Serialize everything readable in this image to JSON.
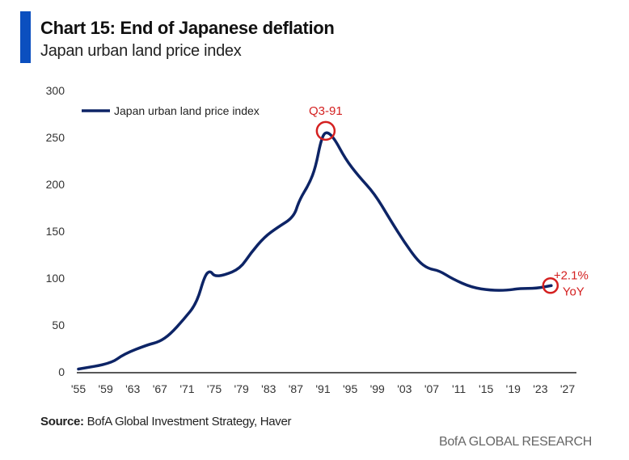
{
  "header": {
    "title": "Chart 15: End of Japanese deflation",
    "subtitle": "Japan urban land price index"
  },
  "footer": {
    "source_label": "Source:",
    "source_text": "BofA Global Investment Strategy, Haver",
    "brand": "BofA GLOBAL RESEARCH"
  },
  "colors": {
    "line": "#0d2466",
    "accent": "#0b4fbf",
    "annotation": "#d42020"
  },
  "chart_data": {
    "type": "line",
    "title": "Japan urban land price index",
    "xlabel": "",
    "ylabel": "",
    "ylim": [
      0,
      300
    ],
    "xlim": [
      1955,
      2027
    ],
    "yticks": [
      0,
      50,
      100,
      150,
      200,
      250,
      300
    ],
    "xticks": [
      "'55",
      "'59",
      "'63",
      "'67",
      "'71",
      "'75",
      "'79",
      "'83",
      "'87",
      "'91",
      "'95",
      "'99",
      "'03",
      "'07",
      "'11",
      "'15",
      "'19",
      "'23",
      "'27"
    ],
    "xtick_years": [
      1955,
      1959,
      1963,
      1967,
      1971,
      1975,
      1979,
      1983,
      1987,
      1991,
      1995,
      1999,
      2003,
      2007,
      2011,
      2015,
      2019,
      2023,
      2027
    ],
    "legend": {
      "position": "top-left",
      "entries": [
        "Japan urban land price index"
      ]
    },
    "series": [
      {
        "name": "Japan urban land price index",
        "x": [
          1955,
          1959.8,
          1961.7,
          1965.2,
          1966.9,
          1968.5,
          1970.5,
          1972.4,
          1973.6,
          1974.4,
          1975.0,
          1976.4,
          1978.8,
          1980.4,
          1982.4,
          1984.3,
          1986.7,
          1987.5,
          1989,
          1989.9,
          1990.7,
          1991.4,
          1992.6,
          1994.3,
          1996.2,
          1998.6,
          2001,
          2003,
          2005,
          2006.5,
          2008.1,
          2010.1,
          2012.9,
          2015.7,
          2018.1,
          2020,
          2022.4,
          2024.6
        ],
        "values": [
          3,
          9,
          19,
          29,
          32,
          40,
          56,
          73,
          103,
          108,
          102,
          103,
          110,
          127,
          144,
          154,
          165,
          183,
          201,
          218,
          247,
          257,
          250,
          227,
          209,
          190,
          161,
          138,
          118,
          110,
          108,
          99,
          90,
          87,
          87,
          89,
          89,
          92
        ]
      }
    ],
    "annotations": [
      {
        "label": "Q3-91",
        "x": 1991.4,
        "y": 257
      },
      {
        "label": "+2.1%",
        "label2": "YoY",
        "x": 2024.6,
        "y": 92
      }
    ]
  }
}
